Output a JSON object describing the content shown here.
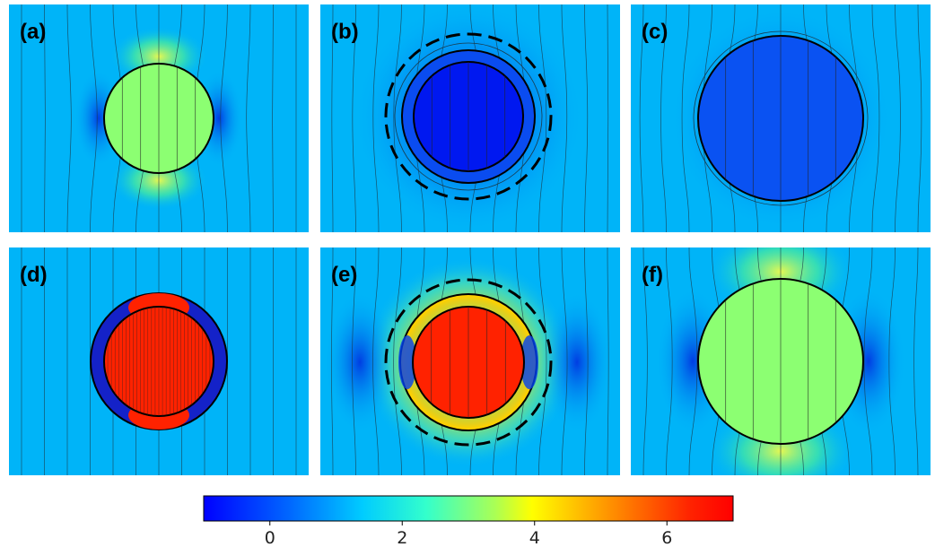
{
  "figure": {
    "panels": [
      {
        "id": "a",
        "label": "(a)",
        "fill": "#8cff72",
        "shell": false,
        "field": "bulge"
      },
      {
        "id": "b",
        "label": "(b)",
        "fill": "#0018f0",
        "shell": true,
        "shellFill": "#0a4cf0",
        "field": "pinch",
        "glow": "#0030e8"
      },
      {
        "id": "c",
        "label": "(c)",
        "fill": "#0a52f2",
        "shell": false,
        "field": "pinch"
      },
      {
        "id": "d",
        "label": "(d)",
        "fill": "#ff2200",
        "shell": true,
        "shellFill": "#1422c8",
        "field": "straight"
      },
      {
        "id": "e",
        "label": "(e)",
        "fill": "#ff2200",
        "shell": true,
        "shellFill": "#ffd000",
        "field": "pinch",
        "glow": "#ffd800"
      },
      {
        "id": "f",
        "label": "(f)",
        "fill": "#8cff72",
        "shell": false,
        "field": "bulge"
      }
    ],
    "background_color": "#00b4f8"
  },
  "colorbar": {
    "ticks": [
      {
        "label": "0",
        "value": 0
      },
      {
        "label": "2",
        "value": 2
      },
      {
        "label": "4",
        "value": 4
      },
      {
        "label": "6",
        "value": 6
      }
    ],
    "range": [
      -1.0,
      7.0
    ],
    "colors": [
      "#0000ff",
      "#00a0ff",
      "#00ffff",
      "#a0ff60",
      "#ffff00",
      "#ff8000",
      "#ff0000"
    ]
  }
}
